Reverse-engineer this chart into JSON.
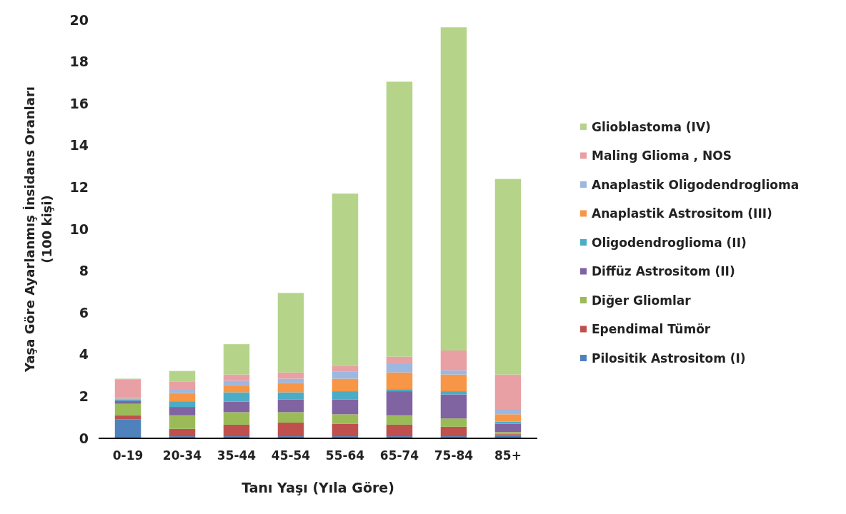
{
  "chart_data": {
    "type": "bar",
    "stacked": true,
    "xlabel": "Tanı Yaşı (Yıla Göre)",
    "ylabel": "Yaşa Göre Ayarlanmış İnsidans Oranları\n(100 kişi)",
    "categories": [
      "0-19",
      "20-34",
      "35-44",
      "45-54",
      "55-64",
      "65-74",
      "75-84",
      "85+"
    ],
    "ylim": [
      0,
      20
    ],
    "yticks": [
      0,
      2,
      4,
      6,
      8,
      10,
      12,
      14,
      16,
      18,
      20
    ],
    "grid": false,
    "legend": "right",
    "series": [
      {
        "name": "Pilositik Astrositom (I)",
        "color": "#4f81bd",
        "values": [
          0.9,
          0.1,
          0.1,
          0.1,
          0.1,
          0.1,
          0.1,
          0.15
        ]
      },
      {
        "name": "Ependimal Tümör",
        "color": "#c0504d",
        "values": [
          0.2,
          0.35,
          0.55,
          0.65,
          0.6,
          0.55,
          0.45,
          0.05
        ]
      },
      {
        "name": "Diğer Gliomlar",
        "color": "#9bbb59",
        "values": [
          0.55,
          0.65,
          0.6,
          0.5,
          0.45,
          0.45,
          0.4,
          0.1
        ]
      },
      {
        "name": "Diffüz Astrositom (II)",
        "color": "#8064a2",
        "values": [
          0.15,
          0.4,
          0.5,
          0.6,
          0.7,
          1.15,
          1.15,
          0.4
        ]
      },
      {
        "name": "Oligodendroglioma (II)",
        "color": "#4bacc6",
        "values": [
          0.05,
          0.27,
          0.45,
          0.35,
          0.4,
          0.1,
          0.15,
          0.1
        ]
      },
      {
        "name": "Anaplastik Astrositom (III)",
        "color": "#f79646",
        "values": [
          0.05,
          0.4,
          0.35,
          0.45,
          0.6,
          0.8,
          0.8,
          0.35
        ]
      },
      {
        "name": "Anaplastik Oligodendroglioma",
        "color": "#9db8e0",
        "values": [
          0.05,
          0.15,
          0.2,
          0.2,
          0.33,
          0.4,
          0.2,
          0.25
        ]
      },
      {
        "name": "Maling Glioma , NOS",
        "color": "#e8a0a4",
        "values": [
          0.85,
          0.4,
          0.3,
          0.3,
          0.27,
          0.35,
          0.95,
          1.65
        ]
      },
      {
        "name": "Glioblastoma (IV)",
        "color": "#b5d48a",
        "values": [
          0.05,
          0.5,
          1.45,
          3.8,
          8.25,
          13.15,
          15.45,
          9.35
        ]
      }
    ]
  }
}
